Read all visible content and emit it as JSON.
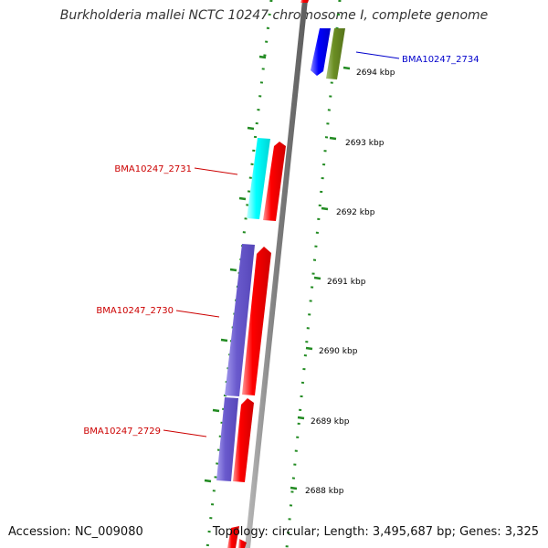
{
  "title": "Burkholderia mallei NCTC 10247 chromosome I, complete genome",
  "accession_text": "Accession: NC_009080",
  "topology_text": "Topology: circular; Length: 3,495,687 bp; Genes: 3,325",
  "ticks": [
    {
      "label": "2694 kbp"
    },
    {
      "label": "2693 kbp"
    },
    {
      "label": "2692 kbp"
    },
    {
      "label": "2691 kbp"
    },
    {
      "label": "2690 kbp"
    },
    {
      "label": "2689 kbp"
    },
    {
      "label": "2688 kbp"
    }
  ],
  "gene_labels": [
    {
      "text": "BMA10247_2734",
      "color": "#0000cc"
    },
    {
      "text": "BMA10247_2731",
      "color": "#cc0000"
    },
    {
      "text": "BMA10247_2730",
      "color": "#cc0000"
    },
    {
      "text": "BMA10247_2729",
      "color": "#cc0000"
    }
  ],
  "colors": {
    "backbone": "#8a8a8a",
    "dots": "#228b22",
    "gene_red": "#ff0000",
    "gene_cyan": "#00ffff",
    "gene_blue": "#0000ff",
    "gene_olive": "#6b8e23",
    "gene_slate": "#6a5acd"
  }
}
